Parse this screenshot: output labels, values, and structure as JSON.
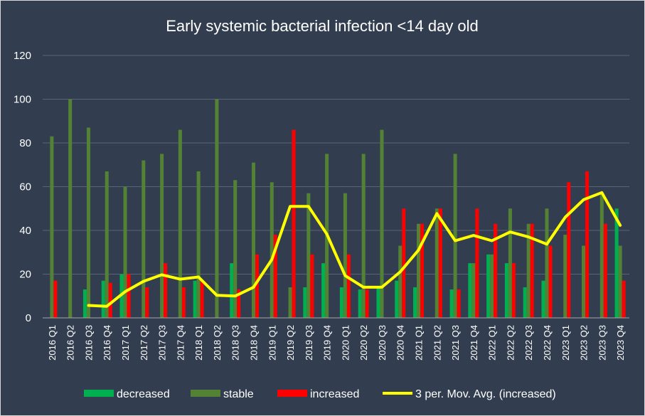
{
  "chart_data": {
    "type": "bar",
    "title": "Early systemic bacterial infection <14 day old",
    "xlabel": "",
    "ylabel": "",
    "ylim": [
      0,
      120
    ],
    "yticks": [
      0,
      20,
      40,
      60,
      80,
      100,
      120
    ],
    "grid": true,
    "legend_position": "bottom",
    "categories": [
      "2016 Q1",
      "2016 Q2",
      "2016 Q3",
      "2016 Q4",
      "2017 Q1",
      "2017 Q2",
      "2017 Q3",
      "2017 Q4",
      "2018 Q1",
      "2018 Q2",
      "2018 Q3",
      "2018 Q4",
      "2019 Q1",
      "2019 Q2",
      "2019 Q3",
      "2019 Q4",
      "2020 Q1",
      "2020 Q2",
      "2020 Q3",
      "2020 Q4",
      "2021 Q1",
      "2021 Q2",
      "2021 Q3",
      "2021 Q4",
      "2022 Q1",
      "2022 Q2",
      "2022 Q3",
      "2022 Q4",
      "2023 Q1",
      "2023 Q2",
      "2023 Q3",
      "2023 Q4"
    ],
    "series": [
      {
        "name": "decreased",
        "type": "bar",
        "color": "#00B050",
        "values": [
          0,
          0,
          13,
          17,
          20,
          0,
          0,
          0,
          17,
          0,
          25,
          0,
          0,
          0,
          14,
          25,
          14,
          13,
          14,
          17,
          14,
          0,
          13,
          25,
          29,
          25,
          14,
          17,
          0,
          0,
          0,
          50
        ]
      },
      {
        "name": "stable",
        "type": "bar",
        "color": "#548235",
        "values": [
          83,
          100,
          87,
          67,
          60,
          72,
          75,
          86,
          67,
          100,
          63,
          71,
          62,
          14,
          57,
          75,
          57,
          75,
          86,
          33,
          43,
          50,
          75,
          25,
          29,
          50,
          43,
          50,
          38,
          33,
          57,
          33
        ]
      },
      {
        "name": "increased",
        "type": "bar",
        "color": "#FF0000",
        "values": [
          17,
          0,
          0,
          16,
          20,
          14,
          25,
          14,
          17,
          0,
          13,
          29,
          38,
          86,
          29,
          0,
          29,
          13,
          0,
          50,
          43,
          50,
          13,
          50,
          43,
          25,
          43,
          33,
          62,
          67,
          43,
          17
        ]
      },
      {
        "name": "3 per. Mov. Avg. (increased)",
        "type": "line",
        "color": "#FFFF00",
        "values": [
          null,
          null,
          5.7,
          5.3,
          12,
          16.7,
          19.7,
          17.7,
          18.7,
          10.3,
          10,
          14,
          26.7,
          51,
          51,
          38.3,
          19.3,
          14,
          14,
          21,
          31,
          47.7,
          35.3,
          37.7,
          35.3,
          39.3,
          37,
          33.7,
          46,
          54,
          57.3,
          42.3
        ]
      }
    ]
  }
}
